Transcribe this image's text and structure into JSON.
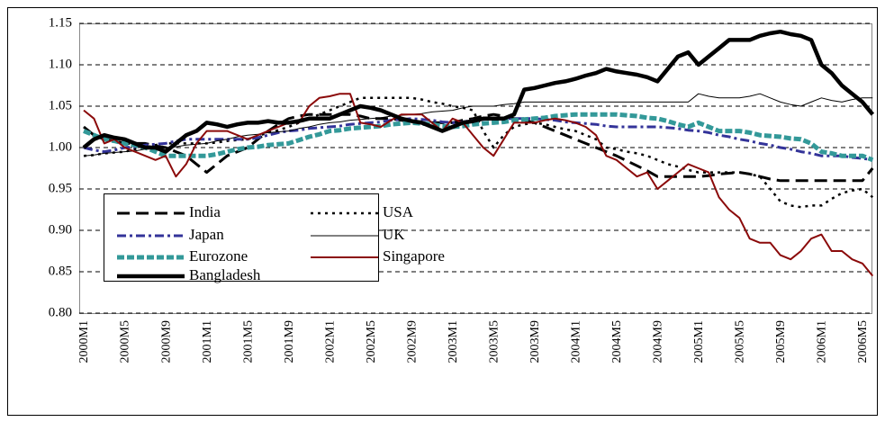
{
  "chart_data": {
    "type": "line",
    "categories": [
      "2000M1",
      null,
      null,
      null,
      "2000M5",
      null,
      null,
      null,
      "2000M9",
      null,
      null,
      null,
      "2001M1",
      null,
      null,
      null,
      "2001M5",
      null,
      null,
      null,
      "2001M9",
      null,
      null,
      null,
      "2002M1",
      null,
      null,
      null,
      "2002M5",
      null,
      null,
      null,
      "2002M9",
      null,
      null,
      null,
      "2003M1",
      null,
      null,
      null,
      "2003M5",
      null,
      null,
      null,
      "2003M9",
      null,
      null,
      null,
      "2004M1",
      null,
      null,
      null,
      "2004M5",
      null,
      null,
      null,
      "2004M9",
      null,
      null,
      null,
      "2005M1",
      null,
      null,
      null,
      "2005M5",
      null,
      null,
      null,
      "2005M9",
      null,
      null,
      null,
      "2006M1",
      null,
      null,
      null,
      "2006M5",
      null
    ],
    "ylim": [
      0.8,
      1.15
    ],
    "yticks": [
      {
        "value": 0.8,
        "label": "0.80"
      },
      0.85,
      {
        "value": 0.9,
        "label": "0.90"
      },
      0.95,
      {
        "value": 1.0,
        "label": "1.00"
      },
      1.05,
      {
        "value": 1.1,
        "label": "1.10"
      },
      1.15
    ],
    "grid": true,
    "series": [
      {
        "name": "India",
        "color": "#000000",
        "values": [
          1.025,
          1.015,
          1.01,
          1.008,
          1.005,
          1.005,
          1.005,
          1.002,
          1.0,
          0.995,
          0.99,
          0.98,
          0.97,
          0.98,
          0.99,
          0.995,
          1.0,
          1.01,
          1.02,
          1.028,
          1.035,
          1.038,
          1.04,
          1.04,
          1.04,
          1.04,
          1.04,
          1.038,
          1.035,
          1.035,
          1.035,
          1.033,
          1.03,
          1.03,
          1.03,
          1.03,
          1.03,
          1.033,
          1.035,
          1.038,
          1.04,
          1.038,
          1.035,
          1.033,
          1.03,
          1.025,
          1.02,
          1.015,
          1.01,
          1.005,
          1.0,
          0.995,
          0.99,
          0.984,
          0.978,
          0.972,
          0.965,
          0.965,
          0.965,
          0.965,
          0.965,
          0.966,
          0.968,
          0.969,
          0.97,
          0.968,
          0.965,
          0.962,
          0.96,
          0.96,
          0.96,
          0.96,
          0.96,
          0.96,
          0.96,
          0.96,
          0.96,
          0.975
        ]
      },
      {
        "name": "USA",
        "color": "#000000",
        "values": [
          0.99,
          0.991,
          0.993,
          0.994,
          0.995,
          0.998,
          1.0,
          1.003,
          1.005,
          1.005,
          1.005,
          1.005,
          1.005,
          1.006,
          1.008,
          1.009,
          1.01,
          1.014,
          1.018,
          1.021,
          1.025,
          1.03,
          1.035,
          1.04,
          1.045,
          1.05,
          1.055,
          1.06,
          1.06,
          1.06,
          1.06,
          1.06,
          1.06,
          1.058,
          1.055,
          1.053,
          1.05,
          1.048,
          1.045,
          1.02,
          1.0,
          1.015,
          1.025,
          1.028,
          1.03,
          1.028,
          1.025,
          1.022,
          1.02,
          1.015,
          1.01,
          1.0,
          0.998,
          0.995,
          0.993,
          0.99,
          0.985,
          0.98,
          0.977,
          0.973,
          0.97,
          0.97,
          0.97,
          0.97,
          0.97,
          0.968,
          0.965,
          0.95,
          0.935,
          0.93,
          0.928,
          0.93,
          0.93,
          0.938,
          0.945,
          0.948,
          0.95,
          0.94
        ]
      },
      {
        "name": "Japan",
        "color": "#333399",
        "values": [
          1.0,
          0.997,
          0.995,
          0.997,
          1.0,
          1.001,
          1.003,
          1.004,
          1.005,
          1.008,
          1.01,
          1.01,
          1.01,
          1.01,
          1.01,
          1.01,
          1.01,
          1.012,
          1.015,
          1.018,
          1.02,
          1.021,
          1.023,
          1.024,
          1.025,
          1.026,
          1.028,
          1.029,
          1.03,
          1.031,
          1.033,
          1.034,
          1.035,
          1.034,
          1.033,
          1.031,
          1.03,
          1.031,
          1.033,
          1.034,
          1.035,
          1.035,
          1.035,
          1.035,
          1.035,
          1.034,
          1.033,
          1.031,
          1.03,
          1.029,
          1.028,
          1.026,
          1.025,
          1.025,
          1.025,
          1.025,
          1.025,
          1.024,
          1.023,
          1.021,
          1.02,
          1.018,
          1.015,
          1.013,
          1.01,
          1.008,
          1.005,
          1.003,
          1.0,
          0.998,
          0.995,
          0.993,
          0.99,
          0.99,
          0.99,
          0.988,
          0.987,
          0.985
        ]
      },
      {
        "name": "UK",
        "color": "#000000",
        "values": [
          0.99,
          0.991,
          0.993,
          0.994,
          0.995,
          0.996,
          0.998,
          0.999,
          1.0,
          1.001,
          1.003,
          1.004,
          1.005,
          1.008,
          1.01,
          1.013,
          1.015,
          1.016,
          1.018,
          1.019,
          1.02,
          1.023,
          1.025,
          1.028,
          1.03,
          1.031,
          1.033,
          1.034,
          1.035,
          1.036,
          1.038,
          1.039,
          1.04,
          1.041,
          1.043,
          1.044,
          1.045,
          1.048,
          1.05,
          1.05,
          1.05,
          1.052,
          1.053,
          1.055,
          1.055,
          1.055,
          1.055,
          1.055,
          1.055,
          1.055,
          1.055,
          1.055,
          1.055,
          1.055,
          1.055,
          1.055,
          1.055,
          1.055,
          1.055,
          1.055,
          1.065,
          1.062,
          1.06,
          1.06,
          1.06,
          1.062,
          1.065,
          1.06,
          1.055,
          1.052,
          1.05,
          1.055,
          1.06,
          1.057,
          1.055,
          1.058,
          1.06,
          1.06
        ]
      },
      {
        "name": "Eurozone",
        "color": "#339999",
        "values": [
          1.02,
          1.015,
          1.01,
          1.008,
          1.005,
          1.003,
          1.0,
          0.995,
          0.99,
          0.99,
          0.99,
          0.99,
          0.99,
          0.992,
          0.995,
          0.998,
          1.0,
          1.001,
          1.003,
          1.004,
          1.005,
          1.009,
          1.013,
          1.016,
          1.02,
          1.021,
          1.023,
          1.024,
          1.025,
          1.026,
          1.028,
          1.029,
          1.03,
          1.029,
          1.028,
          1.026,
          1.025,
          1.026,
          1.028,
          1.029,
          1.03,
          1.031,
          1.033,
          1.034,
          1.035,
          1.036,
          1.038,
          1.039,
          1.04,
          1.04,
          1.04,
          1.04,
          1.04,
          1.039,
          1.038,
          1.036,
          1.035,
          1.032,
          1.028,
          1.025,
          1.03,
          1.025,
          1.02,
          1.02,
          1.02,
          1.018,
          1.015,
          1.014,
          1.013,
          1.011,
          1.01,
          1.005,
          0.995,
          0.993,
          0.99,
          0.99,
          0.99,
          0.985
        ]
      },
      {
        "name": "Singapore",
        "color": "#8b0a0a",
        "values": [
          1.045,
          1.035,
          1.005,
          1.01,
          1.0,
          0.995,
          0.99,
          0.985,
          0.99,
          0.965,
          0.98,
          1.005,
          1.02,
          1.02,
          1.02,
          1.015,
          1.01,
          1.015,
          1.02,
          1.025,
          1.03,
          1.03,
          1.05,
          1.06,
          1.062,
          1.065,
          1.065,
          1.03,
          1.028,
          1.025,
          1.033,
          1.04,
          1.04,
          1.04,
          1.03,
          1.02,
          1.035,
          1.03,
          1.015,
          1.0,
          0.99,
          1.01,
          1.03,
          1.03,
          1.03,
          1.033,
          1.035,
          1.033,
          1.03,
          1.025,
          1.015,
          0.99,
          0.985,
          0.975,
          0.965,
          0.97,
          0.95,
          0.96,
          0.97,
          0.98,
          0.975,
          0.97,
          0.94,
          0.925,
          0.915,
          0.89,
          0.885,
          0.885,
          0.87,
          0.865,
          0.875,
          0.89,
          0.895,
          0.875,
          0.875,
          0.865,
          0.86,
          0.845
        ]
      },
      {
        "name": "Bangladesh",
        "color": "#000000",
        "values": [
          1.0,
          1.01,
          1.015,
          1.012,
          1.01,
          1.005,
          1.0,
          1.0,
          0.995,
          1.005,
          1.015,
          1.02,
          1.03,
          1.028,
          1.025,
          1.028,
          1.03,
          1.03,
          1.032,
          1.03,
          1.03,
          1.032,
          1.035,
          1.035,
          1.035,
          1.04,
          1.045,
          1.05,
          1.048,
          1.045,
          1.04,
          1.035,
          1.032,
          1.03,
          1.025,
          1.02,
          1.025,
          1.03,
          1.032,
          1.035,
          1.035,
          1.035,
          1.04,
          1.07,
          1.072,
          1.075,
          1.078,
          1.08,
          1.083,
          1.087,
          1.09,
          1.095,
          1.092,
          1.09,
          1.088,
          1.085,
          1.08,
          1.095,
          1.11,
          1.115,
          1.1,
          1.11,
          1.12,
          1.13,
          1.13,
          1.13,
          1.135,
          1.138,
          1.14,
          1.137,
          1.135,
          1.13,
          1.1,
          1.09,
          1.075,
          1.065,
          1.055,
          1.04
        ]
      }
    ]
  }
}
